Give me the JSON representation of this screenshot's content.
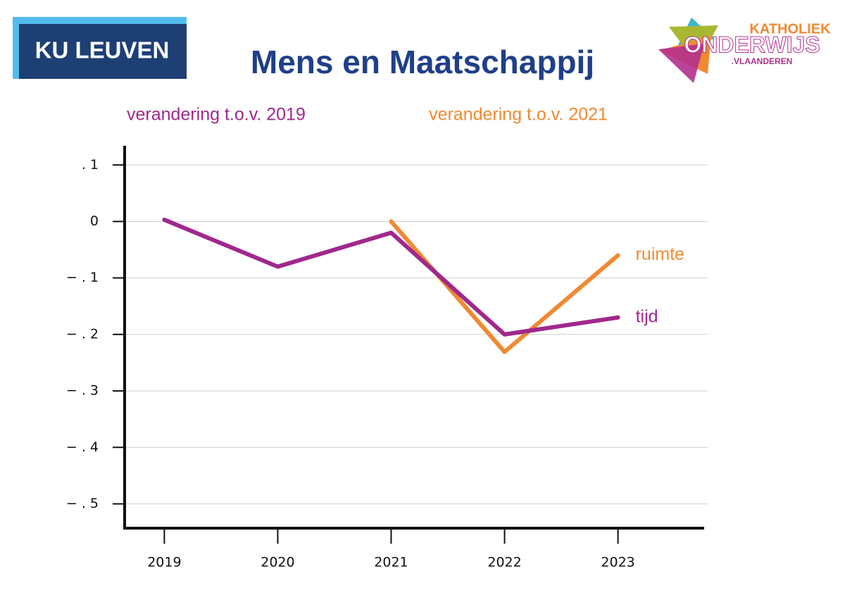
{
  "logos": {
    "left": "KU LEUVEN",
    "right": [
      "KATHOLIEK",
      "ONDERWIJS",
      ".VLAANDEREN"
    ]
  },
  "chart_data": {
    "type": "line",
    "title": "Mens en Maatschappij",
    "subtitles": [
      {
        "text": "verandering t.o.v. 2019",
        "color": "#a0288c"
      },
      {
        "text": "verandering t.o.v. 2021",
        "color": "#f08a32"
      }
    ],
    "x": [
      2019,
      2020,
      2021,
      2022,
      2023
    ],
    "xlim": [
      2018.65,
      2023.76
    ],
    "xticks": [
      2019,
      2020,
      2021,
      2022,
      2023
    ],
    "ylim": [
      -0.543,
      0.134
    ],
    "yticks": [
      {
        "value": 0.1,
        "label": ". 1"
      },
      0,
      {
        "value": -0.1,
        "label": "− . 1"
      },
      {
        "value": -0.2,
        "label": "− . 2"
      },
      {
        "value": -0.3,
        "label": "− . 3"
      },
      {
        "value": -0.4,
        "label": "− . 4"
      },
      {
        "value": -0.5,
        "label": "− . 5"
      }
    ],
    "grid": true,
    "series": [
      {
        "name": "ruimte",
        "color": "#f08a32",
        "values": [
          null,
          null,
          0,
          -0.231,
          -0.06
        ]
      },
      {
        "name": "tijd",
        "color": "#a0288c",
        "values": [
          0.003,
          -0.08,
          -0.02,
          -0.2,
          -0.17
        ]
      }
    ]
  }
}
